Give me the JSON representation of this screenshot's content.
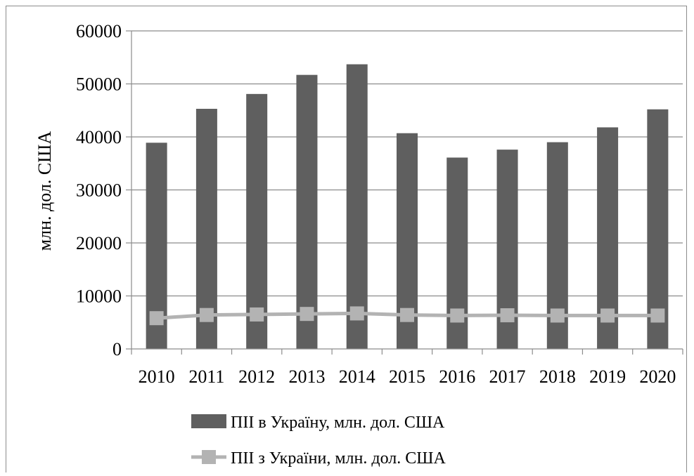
{
  "chart_data": {
    "type": "bar",
    "categories": [
      "2010",
      "2011",
      "2012",
      "2013",
      "2014",
      "2015",
      "2016",
      "2017",
      "2018",
      "2019",
      "2020"
    ],
    "series": [
      {
        "name": "ПІІ в Україну, млн. дол. США",
        "type": "bar",
        "color": "#5f5f5f",
        "values": [
          38900,
          45300,
          48100,
          51700,
          53700,
          40700,
          36100,
          37600,
          39000,
          41800,
          45200
        ]
      },
      {
        "name": "ПІІ з України, млн. дол. США",
        "type": "line",
        "color": "#b3b3b3",
        "values": [
          5800,
          6400,
          6500,
          6600,
          6700,
          6400,
          6300,
          6350,
          6300,
          6300,
          6300
        ]
      }
    ],
    "title": "",
    "xlabel": "",
    "ylabel": "млн. дол. США",
    "ylim": [
      0,
      60000
    ],
    "yticks": [
      "0",
      "10000",
      "20000",
      "30000",
      "40000",
      "50000",
      "60000"
    ],
    "grid": true,
    "legend": "bottom"
  }
}
